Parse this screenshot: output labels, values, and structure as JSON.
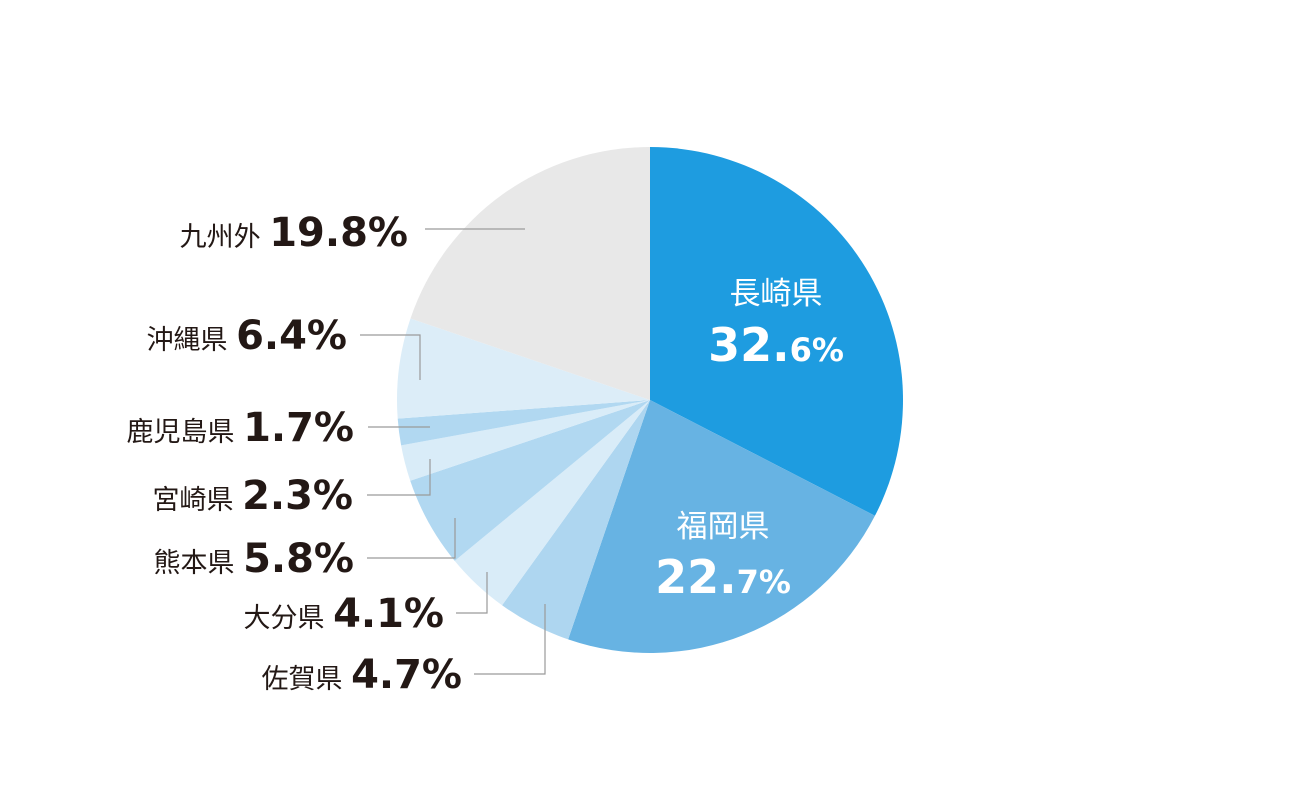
{
  "chart_data": {
    "type": "pie",
    "start_angle": "12 o'clock",
    "direction": "clockwise",
    "slices": [
      {
        "label": "長崎県",
        "value": 32.6,
        "value_text": "32.",
        "value_suffix": "6%",
        "color": "#1e9ce0",
        "label_position": "inside"
      },
      {
        "label": "福岡県",
        "value": 22.7,
        "value_text": "22.",
        "value_suffix": "7%",
        "color": "#67b3e3",
        "label_position": "inside"
      },
      {
        "label": "佐賀県",
        "value": 4.7,
        "value_text": "4.7%",
        "color": "#aed6f0",
        "label_position": "outside"
      },
      {
        "label": "大分県",
        "value": 4.1,
        "value_text": "4.1%",
        "color": "#d9ecf8",
        "label_position": "outside"
      },
      {
        "label": "熊本県",
        "value": 5.8,
        "value_text": "5.8%",
        "color": "#b1d8f1",
        "label_position": "outside"
      },
      {
        "label": "宮崎県",
        "value": 2.3,
        "value_text": "2.3%",
        "color": "#d9ecf8",
        "label_position": "outside"
      },
      {
        "label": "鹿児島県",
        "value": 1.7,
        "value_text": "1.7%",
        "color": "#b1d8f1",
        "label_position": "outside"
      },
      {
        "label": "沖縄県",
        "value": 6.4,
        "value_text": "6.4%",
        "color": "#dcedf8",
        "label_position": "outside"
      },
      {
        "label": "九州外",
        "value": 19.8,
        "value_text": "19.8%",
        "color": "#e8e8e8",
        "label_position": "outside"
      }
    ]
  }
}
